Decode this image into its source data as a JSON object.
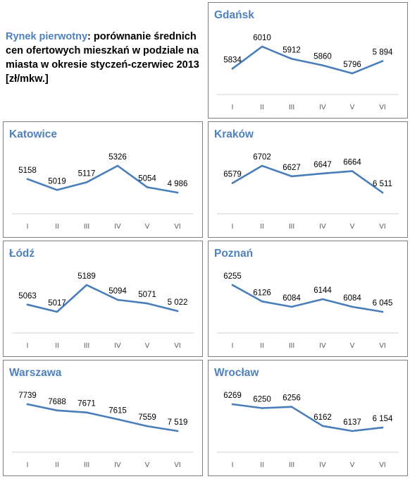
{
  "intro": {
    "highlight": "Rynek pierwotny",
    "text": ": porównanie średnich cen ofertowych mieszkań w podziale na miasta w okresie styczeń-czerwiec 2013 [zł/mkw.]"
  },
  "series_color": "#4a7ebb",
  "title_color": "#4f81bd",
  "chart_data": [
    {
      "type": "line",
      "title": "Gdańsk",
      "categories": [
        "I",
        "II",
        "III",
        "IV",
        "V",
        "VI"
      ],
      "values": [
        5834,
        6010,
        5912,
        5860,
        5796,
        5894
      ],
      "labels": [
        "5834",
        "6010",
        "5912",
        "5860",
        "5796",
        "5 894"
      ]
    },
    {
      "type": "line",
      "title": "Katowice",
      "categories": [
        "I",
        "II",
        "III",
        "IV",
        "V",
        "VI"
      ],
      "values": [
        5158,
        5019,
        5117,
        5326,
        5054,
        4986
      ],
      "labels": [
        "5158",
        "5019",
        "5117",
        "5326",
        "5054",
        "4 986"
      ]
    },
    {
      "type": "line",
      "title": "Kraków",
      "categories": [
        "I",
        "II",
        "III",
        "IV",
        "V",
        "VI"
      ],
      "values": [
        6579,
        6702,
        6627,
        6647,
        6664,
        6511
      ],
      "labels": [
        "6579",
        "6702",
        "6627",
        "6647",
        "6664",
        "6 511"
      ]
    },
    {
      "type": "line",
      "title": "Łódź",
      "categories": [
        "I",
        "II",
        "III",
        "IV",
        "V",
        "VI"
      ],
      "values": [
        5063,
        5017,
        5189,
        5094,
        5071,
        5022
      ],
      "labels": [
        "5063",
        "5017",
        "5189",
        "5094",
        "5071",
        "5 022"
      ]
    },
    {
      "type": "line",
      "title": "Poznań",
      "categories": [
        "I",
        "II",
        "III",
        "IV",
        "V",
        "VI"
      ],
      "values": [
        6255,
        6126,
        6084,
        6144,
        6084,
        6045
      ],
      "labels": [
        "6255",
        "6126",
        "6084",
        "6144",
        "6084",
        "6 045"
      ]
    },
    {
      "type": "line",
      "title": "Warszawa",
      "categories": [
        "I",
        "II",
        "III",
        "IV",
        "V",
        "VI"
      ],
      "values": [
        7739,
        7688,
        7671,
        7615,
        7559,
        7519
      ],
      "labels": [
        "7739",
        "7688",
        "7671",
        "7615",
        "7559",
        "7 519"
      ]
    },
    {
      "type": "line",
      "title": "Wrocław",
      "categories": [
        "I",
        "II",
        "III",
        "IV",
        "V",
        "VI"
      ],
      "values": [
        6269,
        6250,
        6256,
        6162,
        6137,
        6154
      ],
      "labels": [
        "6269",
        "6250",
        "6256",
        "6162",
        "6137",
        "6 154"
      ]
    }
  ]
}
